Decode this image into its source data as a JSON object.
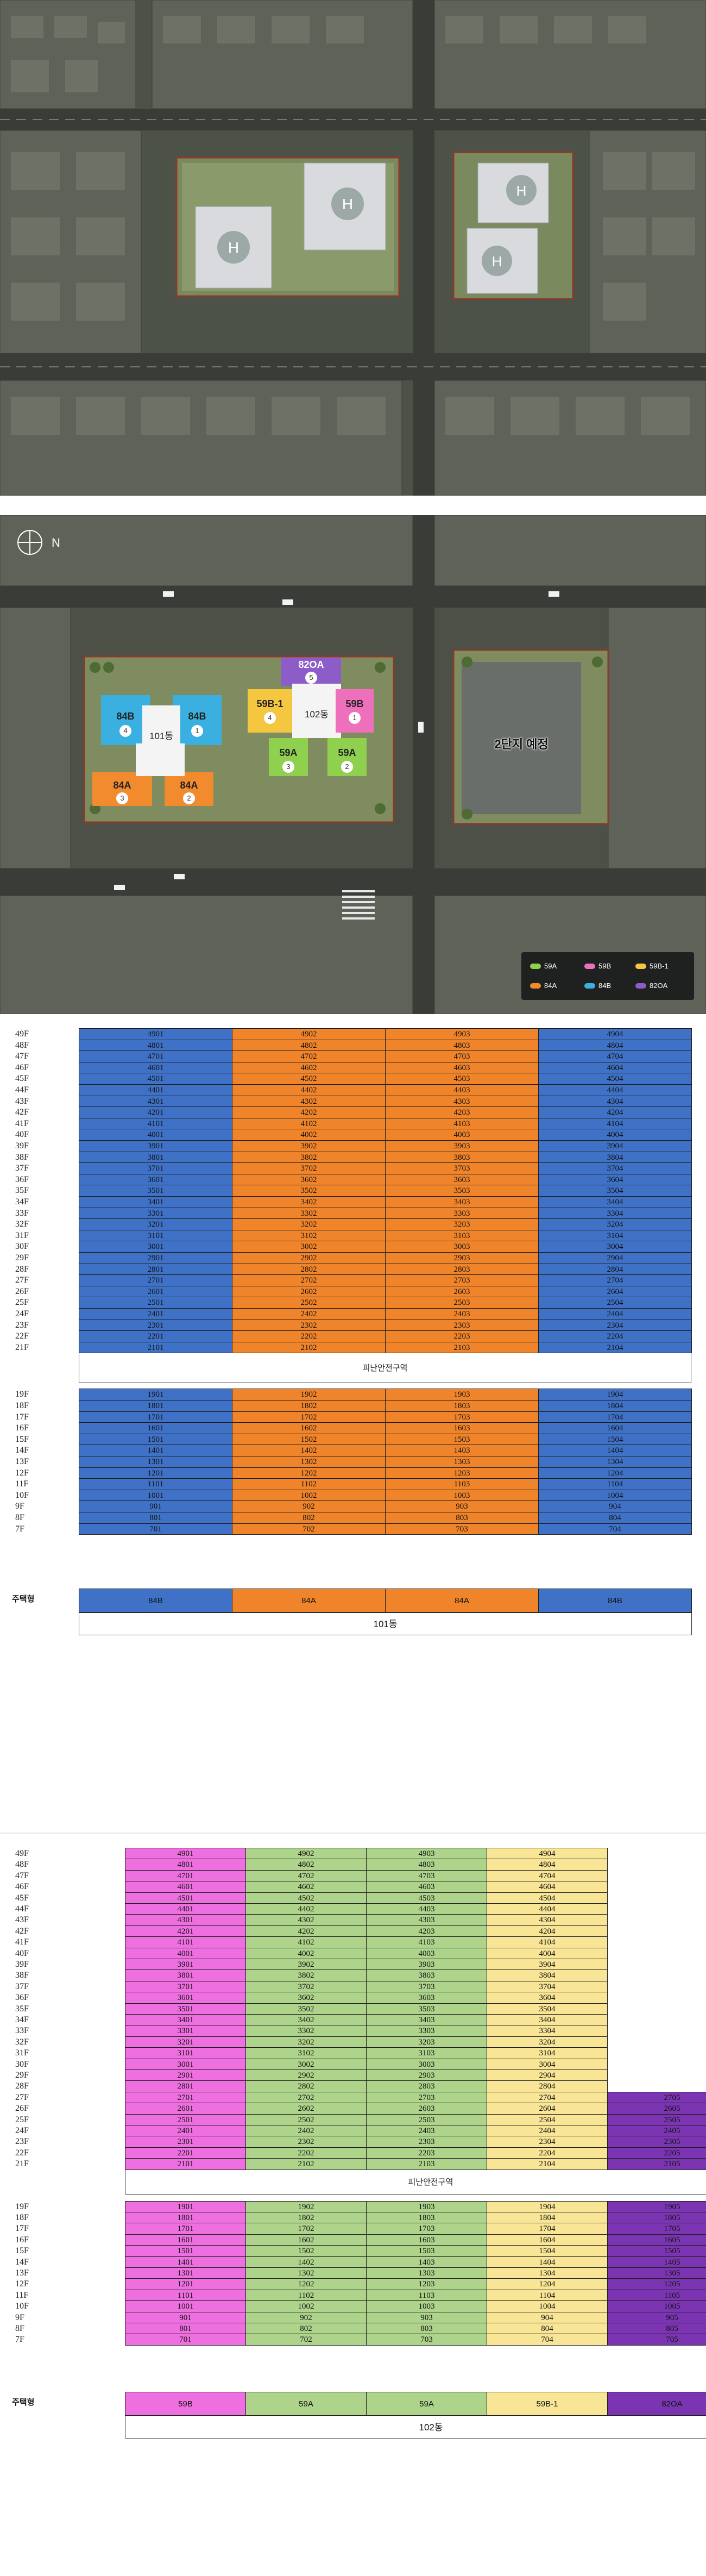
{
  "aerial_top": {
    "bg": "#4b5046"
  },
  "siteplan": {
    "compass_icon": "compass-north-icon",
    "blocks_left": [
      {
        "id": "84B-left",
        "label": "84B",
        "num": "4",
        "color": "#3ab0e0"
      },
      {
        "id": "84B-right",
        "label": "84B",
        "num": "1",
        "color": "#3ab0e0"
      },
      {
        "id": "84A-left",
        "label": "84A",
        "num": "3",
        "color": "#f28a2e"
      },
      {
        "id": "84A-right",
        "label": "84A",
        "num": "2",
        "color": "#f28a2e"
      },
      {
        "id": "dong101",
        "label": "101동"
      }
    ],
    "blocks_right": [
      {
        "id": "82OA",
        "label": "82OA",
        "num": "5",
        "color": "#8c5cc9"
      },
      {
        "id": "59B-1",
        "label": "59B-1",
        "num": "4",
        "color": "#f5c640"
      },
      {
        "id": "59B",
        "label": "59B",
        "num": "1",
        "color": "#ee70bd"
      },
      {
        "id": "59A-left",
        "label": "59A",
        "num": "3",
        "color": "#8fd14f"
      },
      {
        "id": "59A-right",
        "label": "59A",
        "num": "2",
        "color": "#8fd14f"
      },
      {
        "id": "dong102",
        "label": "102동"
      }
    ],
    "phase2": "2단지 예정",
    "legend": [
      {
        "label": "59A",
        "color": "#8fd14f"
      },
      {
        "label": "59B",
        "color": "#ee70bd"
      },
      {
        "label": "59B-1",
        "color": "#f5c640"
      },
      {
        "label": "84A",
        "color": "#f28a2e"
      },
      {
        "label": "84B",
        "color": "#3ab0e0"
      },
      {
        "label": "82OA",
        "color": "#8c5cc9"
      }
    ]
  },
  "table101": {
    "refuge": "피난안전구역",
    "type_header": "주택형",
    "types": [
      "84B",
      "84A",
      "84A",
      "84B"
    ],
    "type_colors": [
      "#3f72c6",
      "#f0842a",
      "#f0842a",
      "#3f72c6"
    ],
    "dong": "101동",
    "upper_floors": [
      "49F",
      "48F",
      "47F",
      "46F",
      "45F",
      "44F",
      "43F",
      "42F",
      "41F",
      "40F",
      "39F",
      "38F",
      "37F",
      "36F",
      "35F",
      "34F",
      "33F",
      "32F",
      "31F",
      "30F",
      "29F",
      "28F",
      "27F",
      "26F",
      "25F",
      "24F",
      "23F",
      "22F",
      "21F"
    ],
    "lower_floors": [
      "19F",
      "18F",
      "17F",
      "16F",
      "15F",
      "14F",
      "13F",
      "12F",
      "11F",
      "10F",
      "9F",
      "8F",
      "7F"
    ],
    "upper_units": [
      [
        "4901",
        "4902",
        "4903",
        "4904"
      ],
      [
        "4801",
        "4802",
        "4803",
        "4804"
      ],
      [
        "4701",
        "4702",
        "4703",
        "4704"
      ],
      [
        "4601",
        "4602",
        "4603",
        "4604"
      ],
      [
        "4501",
        "4502",
        "4503",
        "4504"
      ],
      [
        "4401",
        "4402",
        "4403",
        "4404"
      ],
      [
        "4301",
        "4302",
        "4303",
        "4304"
      ],
      [
        "4201",
        "4202",
        "4203",
        "4204"
      ],
      [
        "4101",
        "4102",
        "4103",
        "4104"
      ],
      [
        "4001",
        "4002",
        "4003",
        "4004"
      ],
      [
        "3901",
        "3902",
        "3903",
        "3904"
      ],
      [
        "3801",
        "3802",
        "3803",
        "3804"
      ],
      [
        "3701",
        "3702",
        "3703",
        "3704"
      ],
      [
        "3601",
        "3602",
        "3603",
        "3604"
      ],
      [
        "3501",
        "3502",
        "3503",
        "3504"
      ],
      [
        "3401",
        "3402",
        "3403",
        "3404"
      ],
      [
        "3301",
        "3302",
        "3303",
        "3304"
      ],
      [
        "3201",
        "3202",
        "3203",
        "3204"
      ],
      [
        "3101",
        "3102",
        "3103",
        "3104"
      ],
      [
        "3001",
        "3002",
        "3003",
        "3004"
      ],
      [
        "2901",
        "2902",
        "2903",
        "2904"
      ],
      [
        "2801",
        "2802",
        "2803",
        "2804"
      ],
      [
        "2701",
        "2702",
        "2703",
        "2704"
      ],
      [
        "2601",
        "2602",
        "2603",
        "2604"
      ],
      [
        "2501",
        "2502",
        "2503",
        "2504"
      ],
      [
        "2401",
        "2402",
        "2403",
        "2404"
      ],
      [
        "2301",
        "2302",
        "2303",
        "2304"
      ],
      [
        "2201",
        "2202",
        "2203",
        "2204"
      ],
      [
        "2101",
        "2102",
        "2103",
        "2104"
      ]
    ],
    "lower_units": [
      [
        "1901",
        "1902",
        "1903",
        "1904"
      ],
      [
        "1801",
        "1802",
        "1803",
        "1804"
      ],
      [
        "1701",
        "1702",
        "1703",
        "1704"
      ],
      [
        "1601",
        "1602",
        "1603",
        "1604"
      ],
      [
        "1501",
        "1502",
        "1503",
        "1504"
      ],
      [
        "1401",
        "1402",
        "1403",
        "1404"
      ],
      [
        "1301",
        "1302",
        "1303",
        "1304"
      ],
      [
        "1201",
        "1202",
        "1203",
        "1204"
      ],
      [
        "1101",
        "1102",
        "1103",
        "1104"
      ],
      [
        "1001",
        "1002",
        "1003",
        "1004"
      ],
      [
        "901",
        "902",
        "903",
        "904"
      ],
      [
        "801",
        "802",
        "803",
        "804"
      ],
      [
        "701",
        "702",
        "703",
        "704"
      ]
    ]
  },
  "table102": {
    "refuge": "피난안전구역",
    "type_header": "주택형",
    "types": [
      "59B",
      "59A",
      "59A",
      "59B-1",
      "82OA"
    ],
    "type_colors": [
      "#ee6fe0",
      "#aed38b",
      "#aed38b",
      "#f8e596",
      "#7b35b2"
    ],
    "dong": "102동",
    "upper_floors": [
      "49F",
      "48F",
      "47F",
      "46F",
      "45F",
      "44F",
      "43F",
      "42F",
      "41F",
      "40F",
      "39F",
      "38F",
      "37F",
      "36F",
      "35F",
      "34F",
      "33F",
      "32F",
      "31F",
      "30F",
      "29F",
      "28F",
      "27F",
      "26F",
      "25F",
      "24F",
      "23F",
      "22F",
      "21F"
    ],
    "lower_floors": [
      "19F",
      "18F",
      "17F",
      "16F",
      "15F",
      "14F",
      "13F",
      "12F",
      "11F",
      "10F",
      "9F",
      "8F",
      "7F"
    ],
    "upper_units": [
      [
        "4901",
        "4902",
        "4903",
        "4904",
        ""
      ],
      [
        "4801",
        "4802",
        "4803",
        "4804",
        ""
      ],
      [
        "4701",
        "4702",
        "4703",
        "4704",
        ""
      ],
      [
        "4601",
        "4602",
        "4603",
        "4604",
        ""
      ],
      [
        "4501",
        "4502",
        "4503",
        "4504",
        ""
      ],
      [
        "4401",
        "4402",
        "4403",
        "4404",
        ""
      ],
      [
        "4301",
        "4302",
        "4303",
        "4304",
        ""
      ],
      [
        "4201",
        "4202",
        "4203",
        "4204",
        ""
      ],
      [
        "4101",
        "4102",
        "4103",
        "4104",
        ""
      ],
      [
        "4001",
        "4002",
        "4003",
        "4004",
        ""
      ],
      [
        "3901",
        "3902",
        "3903",
        "3904",
        ""
      ],
      [
        "3801",
        "3802",
        "3803",
        "3804",
        ""
      ],
      [
        "3701",
        "3702",
        "3703",
        "3704",
        ""
      ],
      [
        "3601",
        "3602",
        "3603",
        "3604",
        ""
      ],
      [
        "3501",
        "3502",
        "3503",
        "3504",
        ""
      ],
      [
        "3401",
        "3402",
        "3403",
        "3404",
        ""
      ],
      [
        "3301",
        "3302",
        "3303",
        "3304",
        ""
      ],
      [
        "3201",
        "3202",
        "3203",
        "3204",
        ""
      ],
      [
        "3101",
        "3102",
        "3103",
        "3104",
        ""
      ],
      [
        "3001",
        "3002",
        "3003",
        "3004",
        ""
      ],
      [
        "2901",
        "2902",
        "2903",
        "2904",
        ""
      ],
      [
        "2801",
        "2802",
        "2803",
        "2804",
        ""
      ],
      [
        "2701",
        "2702",
        "2703",
        "2704",
        "2705"
      ],
      [
        "2601",
        "2602",
        "2603",
        "2604",
        "2605"
      ],
      [
        "2501",
        "2502",
        "2503",
        "2504",
        "2505"
      ],
      [
        "2401",
        "2402",
        "2403",
        "2404",
        "2405"
      ],
      [
        "2301",
        "2302",
        "2303",
        "2304",
        "2305"
      ],
      [
        "2201",
        "2202",
        "2203",
        "2204",
        "2205"
      ],
      [
        "2101",
        "2102",
        "2103",
        "2104",
        "2105"
      ]
    ],
    "lower_units": [
      [
        "1901",
        "1902",
        "1903",
        "1904",
        "1905"
      ],
      [
        "1801",
        "1802",
        "1803",
        "1804",
        "1805"
      ],
      [
        "1701",
        "1702",
        "1703",
        "1704",
        "1705"
      ],
      [
        "1601",
        "1602",
        "1603",
        "1604",
        "1605"
      ],
      [
        "1501",
        "1502",
        "1503",
        "1504",
        "1505"
      ],
      [
        "1401",
        "1402",
        "1403",
        "1404",
        "1405"
      ],
      [
        "1301",
        "1302",
        "1303",
        "1304",
        "1305"
      ],
      [
        "1201",
        "1202",
        "1203",
        "1204",
        "1205"
      ],
      [
        "1101",
        "1102",
        "1103",
        "1104",
        "1105"
      ],
      [
        "1001",
        "1002",
        "1003",
        "1004",
        "1005"
      ],
      [
        "901",
        "902",
        "903",
        "904",
        "905"
      ],
      [
        "801",
        "802",
        "803",
        "804",
        "805"
      ],
      [
        "701",
        "702",
        "703",
        "704",
        "705"
      ]
    ]
  }
}
